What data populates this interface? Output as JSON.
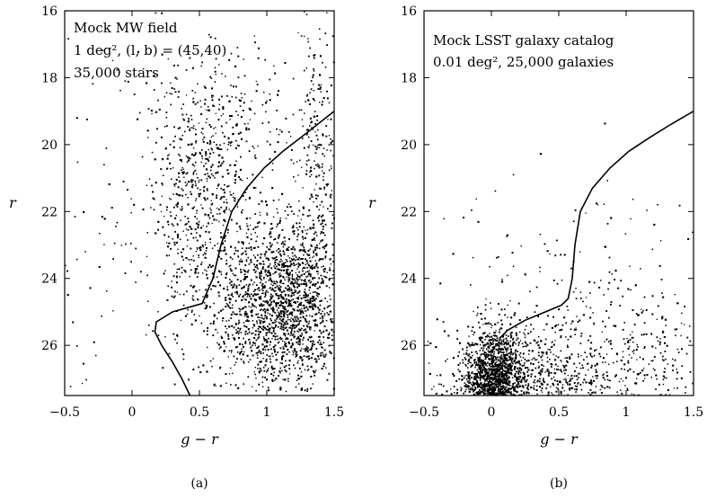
{
  "chart_data": [
    {
      "type": "scatter",
      "panel_caption": "(a)",
      "xlabel": "g − r",
      "ylabel": "r",
      "xlim": [
        -0.5,
        1.5
      ],
      "ylim": [
        27.5,
        16
      ],
      "y_inverted": true,
      "xticks": [
        "−0.5",
        "0",
        "0.5",
        "1",
        "1.5"
      ],
      "xtick_values": [
        -0.5,
        0,
        0.5,
        1,
        1.5
      ],
      "yticks": [
        "16",
        "18",
        "20",
        "22",
        "24",
        "26"
      ],
      "ytick_values": [
        16,
        18,
        20,
        22,
        24,
        26
      ],
      "annotations": [
        {
          "text": "Mock MW field"
        },
        {
          "text": "1 deg², (l, b) = (45,40)"
        },
        {
          "text": "35,000 stars"
        }
      ],
      "point_count": 35000,
      "distributions": [
        {
          "description": "dense disk main sequence clump",
          "x_center": 1.1,
          "x_spread": 0.22,
          "y_center": 24.8,
          "y_spread": 1.3,
          "y_range": [
            21.5,
            27.5
          ],
          "weight": 0.55
        },
        {
          "description": "halo/thick disk turnoff band",
          "x_center": 0.5,
          "x_spread": 0.17,
          "y_center": 22.0,
          "y_spread": 2.0,
          "y_range": [
            17.5,
            27.5
          ],
          "weight": 0.18
        },
        {
          "description": "red dwarfs",
          "x_center": 1.38,
          "x_spread": 0.08,
          "y_center": 22.0,
          "y_spread": 3.0,
          "y_range": [
            16,
            27.5
          ],
          "weight": 0.12
        },
        {
          "description": "bright disk stars",
          "x_center": 0.75,
          "x_spread": 0.25,
          "y_center": 19.5,
          "y_spread": 1.4,
          "y_range": [
            16,
            22.5
          ],
          "weight": 0.08
        },
        {
          "description": "scattered field",
          "x_center": 0.2,
          "x_spread": 0.6,
          "y_center": 23.0,
          "y_spread": 3.5,
          "y_range": [
            16,
            27.5
          ],
          "weight": 0.07
        }
      ],
      "curve": {
        "x": [
          0.43,
          0.37,
          0.3,
          0.22,
          0.17,
          0.18,
          0.3,
          0.52,
          0.6,
          0.66,
          0.74,
          0.85,
          0.98,
          1.12,
          1.28,
          1.5
        ],
        "y": [
          27.5,
          27.0,
          26.5,
          26.0,
          25.6,
          25.3,
          25.0,
          24.75,
          24.0,
          23.0,
          22.0,
          21.3,
          20.7,
          20.2,
          19.7,
          19.0
        ]
      }
    },
    {
      "type": "scatter",
      "panel_caption": "(b)",
      "xlabel": "g − r",
      "ylabel": "r",
      "xlim": [
        -0.5,
        1.5
      ],
      "ylim": [
        27.5,
        16
      ],
      "y_inverted": true,
      "xticks": [
        "−0.5",
        "0",
        "0.5",
        "1",
        "1.5"
      ],
      "xtick_values": [
        -0.5,
        0,
        0.5,
        1,
        1.5
      ],
      "yticks": [
        "16",
        "18",
        "20",
        "22",
        "24",
        "26"
      ],
      "ytick_values": [
        16,
        18,
        20,
        22,
        24,
        26
      ],
      "annotations": [
        {
          "text": "Mock LSST galaxy catalog"
        },
        {
          "text": "0.01 deg², 25,000 galaxies"
        }
      ],
      "point_count": 25000,
      "distributions": [
        {
          "description": "faint blue galaxies core",
          "x_center": 0.02,
          "x_spread": 0.1,
          "y_center": 27.2,
          "y_spread": 0.8,
          "y_range": [
            24.7,
            27.5
          ],
          "weight": 0.55
        },
        {
          "description": "faint galaxies broad",
          "x_center": 0.3,
          "x_spread": 0.35,
          "y_center": 27.0,
          "y_spread": 0.9,
          "y_range": [
            24.5,
            27.5
          ],
          "weight": 0.3
        },
        {
          "description": "red galaxies",
          "x_center": 1.1,
          "x_spread": 0.3,
          "y_center": 26.6,
          "y_spread": 1.1,
          "y_range": [
            23.0,
            27.5
          ],
          "weight": 0.1
        },
        {
          "description": "scattered bright",
          "x_center": 0.6,
          "x_spread": 0.5,
          "y_center": 24.0,
          "y_spread": 1.6,
          "y_range": [
            19.0,
            27.5
          ],
          "weight": 0.05
        }
      ],
      "curve": {
        "x": [
          0.06,
          0.12,
          0.25,
          0.4,
          0.52,
          0.57,
          0.6,
          0.62,
          0.66,
          0.75,
          0.88,
          1.02,
          1.17,
          1.33,
          1.5
        ],
        "y": [
          25.8,
          25.55,
          25.25,
          25.0,
          24.8,
          24.6,
          24.0,
          23.0,
          22.0,
          21.3,
          20.7,
          20.2,
          19.8,
          19.4,
          19.0
        ]
      }
    }
  ]
}
